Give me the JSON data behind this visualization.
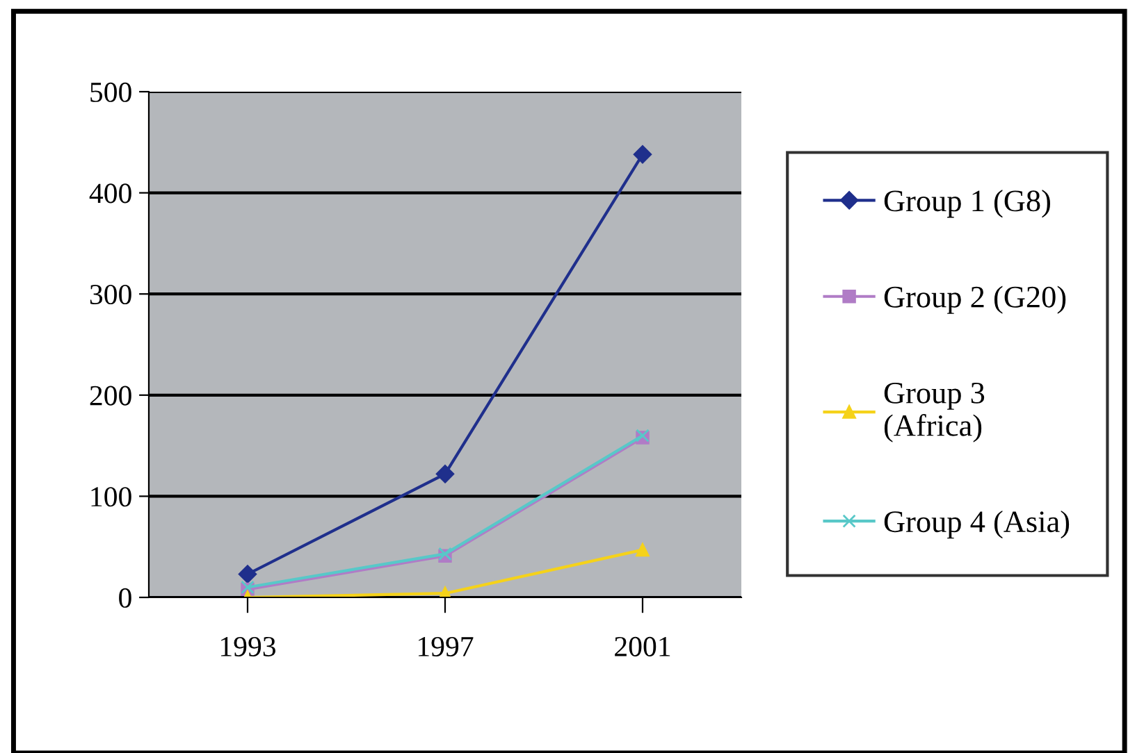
{
  "chart_data": {
    "type": "line",
    "categories": [
      "1993",
      "1997",
      "2001"
    ],
    "series": [
      {
        "name": "Group 1 (G8)",
        "color": "#1f2f8c",
        "marker": "diamond",
        "values": [
          23,
          122,
          438
        ]
      },
      {
        "name": "Group 2 (G20)",
        "color": "#b07cc6",
        "marker": "square",
        "values": [
          8,
          41,
          158
        ]
      },
      {
        "name": "Group 3\n(Africa)",
        "color": "#f5d21a",
        "marker": "triangle",
        "values": [
          0,
          4,
          47
        ]
      },
      {
        "name": "Group 4 (Asia)",
        "color": "#58c8c8",
        "marker": "cross",
        "values": [
          10,
          43,
          160
        ]
      }
    ],
    "ylim": [
      0,
      500
    ],
    "yticks": [
      0,
      100,
      200,
      300,
      400,
      500
    ],
    "grid": "y",
    "legend": "right",
    "line_style": "solid"
  }
}
